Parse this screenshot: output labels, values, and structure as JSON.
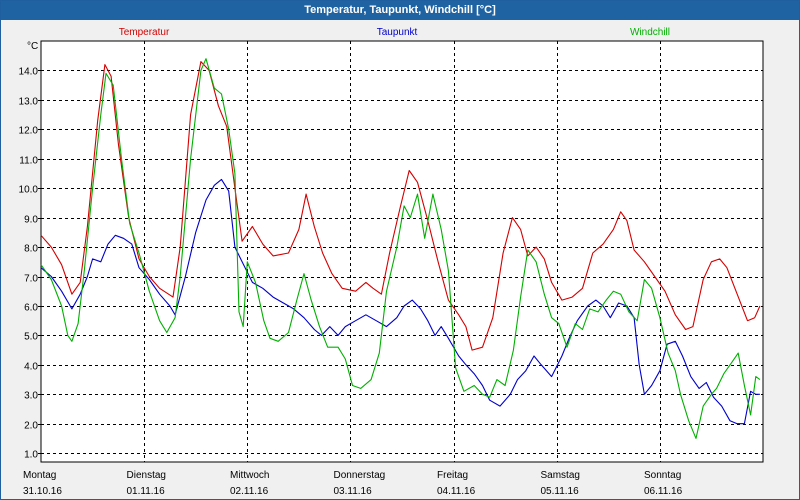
{
  "window": {
    "title": "Temperatur, Taupunkt, Windchill [°C]"
  },
  "chart_data": {
    "type": "line",
    "title": "Temperatur, Taupunkt, Windchill [°C]",
    "ylabel": "°C",
    "ylim": [
      0.7,
      15.0
    ],
    "yticks": [
      1.0,
      2.0,
      3.0,
      4.0,
      5.0,
      6.0,
      7.0,
      8.0,
      9.0,
      10.0,
      11.0,
      12.0,
      13.0,
      14.0
    ],
    "ytick_labels": [
      "1.0",
      "2.0",
      "3.0",
      "4.0",
      "5.0",
      "6.0",
      "7.0",
      "8.0",
      "9.0",
      "10.0",
      "11.0",
      "12.0",
      "13.0",
      "14.0"
    ],
    "x_unit": "days since Monday 31.10.16 00:00",
    "xlim": [
      0,
      7
    ],
    "xticks": [
      {
        "x": 0,
        "day": "Montag",
        "date": "31.10.16"
      },
      {
        "x": 1,
        "day": "Dienstag",
        "date": "01.11.16"
      },
      {
        "x": 2,
        "day": "Mittwoch",
        "date": "02.11.16"
      },
      {
        "x": 3,
        "day": "Donnerstag",
        "date": "03.11.16"
      },
      {
        "x": 4,
        "day": "Freitag",
        "date": "04.11.16"
      },
      {
        "x": 5,
        "day": "Samstag",
        "date": "05.11.16"
      },
      {
        "x": 6,
        "day": "Sonntag",
        "date": "06.11.16"
      }
    ],
    "grid": true,
    "legend_position": "top",
    "series": [
      {
        "name": "Temperatur",
        "color": "#d40000",
        "points": [
          [
            0,
            8.4
          ],
          [
            0.1,
            8.0
          ],
          [
            0.2,
            7.4
          ],
          [
            0.3,
            6.4
          ],
          [
            0.38,
            6.8
          ],
          [
            0.45,
            8.7
          ],
          [
            0.55,
            12.3
          ],
          [
            0.62,
            14.2
          ],
          [
            0.68,
            13.8
          ],
          [
            0.75,
            11.5
          ],
          [
            0.85,
            9.0
          ],
          [
            0.95,
            7.6
          ],
          [
            1.05,
            7.0
          ],
          [
            1.15,
            6.6
          ],
          [
            1.28,
            6.3
          ],
          [
            1.35,
            8.0
          ],
          [
            1.45,
            12.5
          ],
          [
            1.55,
            14.3
          ],
          [
            1.63,
            14.0
          ],
          [
            1.72,
            12.8
          ],
          [
            1.8,
            12.1
          ],
          [
            1.88,
            10.0
          ],
          [
            1.95,
            8.2
          ],
          [
            2.05,
            8.7
          ],
          [
            2.15,
            8.1
          ],
          [
            2.25,
            7.7
          ],
          [
            2.4,
            7.8
          ],
          [
            2.5,
            8.6
          ],
          [
            2.57,
            9.8
          ],
          [
            2.65,
            8.7
          ],
          [
            2.73,
            7.8
          ],
          [
            2.82,
            7.1
          ],
          [
            2.92,
            6.6
          ],
          [
            3.05,
            6.5
          ],
          [
            3.15,
            6.8
          ],
          [
            3.22,
            6.6
          ],
          [
            3.3,
            6.4
          ],
          [
            3.38,
            7.8
          ],
          [
            3.48,
            9.3
          ],
          [
            3.57,
            10.6
          ],
          [
            3.65,
            10.2
          ],
          [
            3.75,
            8.9
          ],
          [
            3.85,
            7.5
          ],
          [
            3.95,
            6.2
          ],
          [
            4.05,
            5.7
          ],
          [
            4.12,
            5.3
          ],
          [
            4.18,
            4.5
          ],
          [
            4.28,
            4.6
          ],
          [
            4.38,
            5.6
          ],
          [
            4.48,
            7.8
          ],
          [
            4.57,
            9.0
          ],
          [
            4.65,
            8.6
          ],
          [
            4.72,
            7.7
          ],
          [
            4.8,
            8.0
          ],
          [
            4.88,
            7.6
          ],
          [
            4.95,
            6.8
          ],
          [
            5.05,
            6.2
          ],
          [
            5.15,
            6.3
          ],
          [
            5.25,
            6.6
          ],
          [
            5.35,
            7.8
          ],
          [
            5.45,
            8.1
          ],
          [
            5.55,
            8.6
          ],
          [
            5.62,
            9.2
          ],
          [
            5.68,
            8.9
          ],
          [
            5.75,
            7.9
          ],
          [
            5.85,
            7.5
          ],
          [
            5.95,
            7.0
          ],
          [
            6.05,
            6.5
          ],
          [
            6.15,
            5.7
          ],
          [
            6.25,
            5.2
          ],
          [
            6.32,
            5.3
          ],
          [
            6.42,
            6.9
          ],
          [
            6.5,
            7.5
          ],
          [
            6.58,
            7.6
          ],
          [
            6.65,
            7.3
          ],
          [
            6.75,
            6.4
          ],
          [
            6.85,
            5.5
          ],
          [
            6.92,
            5.6
          ],
          [
            6.97,
            6.0
          ]
        ]
      },
      {
        "name": "Taupunkt",
        "color": "#0000cc",
        "points": [
          [
            0,
            7.3
          ],
          [
            0.1,
            7.0
          ],
          [
            0.2,
            6.5
          ],
          [
            0.3,
            5.9
          ],
          [
            0.38,
            6.4
          ],
          [
            0.45,
            7.0
          ],
          [
            0.5,
            7.6
          ],
          [
            0.58,
            7.5
          ],
          [
            0.65,
            8.1
          ],
          [
            0.72,
            8.4
          ],
          [
            0.8,
            8.3
          ],
          [
            0.88,
            8.1
          ],
          [
            0.95,
            7.3
          ],
          [
            1.05,
            6.9
          ],
          [
            1.15,
            6.4
          ],
          [
            1.25,
            6.0
          ],
          [
            1.3,
            5.7
          ],
          [
            1.4,
            7.0
          ],
          [
            1.5,
            8.5
          ],
          [
            1.6,
            9.6
          ],
          [
            1.68,
            10.1
          ],
          [
            1.75,
            10.3
          ],
          [
            1.82,
            9.9
          ],
          [
            1.88,
            8.0
          ],
          [
            1.95,
            7.5
          ],
          [
            2.05,
            6.8
          ],
          [
            2.15,
            6.6
          ],
          [
            2.25,
            6.3
          ],
          [
            2.35,
            6.1
          ],
          [
            2.45,
            5.9
          ],
          [
            2.55,
            5.6
          ],
          [
            2.65,
            5.2
          ],
          [
            2.72,
            5.0
          ],
          [
            2.8,
            5.3
          ],
          [
            2.88,
            5.0
          ],
          [
            2.95,
            5.3
          ],
          [
            3.05,
            5.5
          ],
          [
            3.15,
            5.7
          ],
          [
            3.25,
            5.5
          ],
          [
            3.35,
            5.3
          ],
          [
            3.45,
            5.6
          ],
          [
            3.52,
            6.0
          ],
          [
            3.6,
            6.2
          ],
          [
            3.68,
            5.9
          ],
          [
            3.75,
            5.5
          ],
          [
            3.82,
            5.0
          ],
          [
            3.88,
            5.3
          ],
          [
            3.95,
            4.9
          ],
          [
            4.05,
            4.3
          ],
          [
            4.12,
            4.0
          ],
          [
            4.2,
            3.7
          ],
          [
            4.28,
            3.3
          ],
          [
            4.35,
            2.8
          ],
          [
            4.45,
            2.6
          ],
          [
            4.55,
            3.0
          ],
          [
            4.62,
            3.5
          ],
          [
            4.7,
            3.8
          ],
          [
            4.78,
            4.3
          ],
          [
            4.85,
            4.0
          ],
          [
            4.95,
            3.6
          ],
          [
            5.05,
            4.3
          ],
          [
            5.12,
            4.9
          ],
          [
            5.2,
            5.5
          ],
          [
            5.3,
            6.0
          ],
          [
            5.38,
            6.2
          ],
          [
            5.45,
            6.0
          ],
          [
            5.52,
            5.6
          ],
          [
            5.6,
            6.1
          ],
          [
            5.68,
            6.0
          ],
          [
            5.75,
            5.6
          ],
          [
            5.8,
            4.0
          ],
          [
            5.85,
            3.0
          ],
          [
            5.92,
            3.3
          ],
          [
            6.0,
            3.8
          ],
          [
            6.07,
            4.7
          ],
          [
            6.15,
            4.8
          ],
          [
            6.22,
            4.3
          ],
          [
            6.3,
            3.6
          ],
          [
            6.38,
            3.2
          ],
          [
            6.45,
            3.4
          ],
          [
            6.52,
            2.9
          ],
          [
            6.6,
            2.6
          ],
          [
            6.68,
            2.1
          ],
          [
            6.75,
            2.0
          ],
          [
            6.82,
            2.0
          ],
          [
            6.88,
            3.1
          ],
          [
            6.93,
            3.0
          ],
          [
            6.97,
            3.0
          ]
        ]
      },
      {
        "name": "Windchill",
        "color": "#00b000",
        "points": [
          [
            0,
            7.4
          ],
          [
            0.1,
            6.9
          ],
          [
            0.2,
            6.0
          ],
          [
            0.26,
            5.0
          ],
          [
            0.3,
            4.8
          ],
          [
            0.36,
            5.4
          ],
          [
            0.42,
            7.2
          ],
          [
            0.5,
            10.0
          ],
          [
            0.58,
            12.5
          ],
          [
            0.63,
            13.9
          ],
          [
            0.7,
            13.5
          ],
          [
            0.78,
            11.0
          ],
          [
            0.86,
            8.8
          ],
          [
            0.95,
            7.8
          ],
          [
            1.05,
            6.5
          ],
          [
            1.15,
            5.5
          ],
          [
            1.22,
            5.1
          ],
          [
            1.3,
            5.6
          ],
          [
            1.35,
            7.0
          ],
          [
            1.45,
            11.0
          ],
          [
            1.55,
            14.0
          ],
          [
            1.6,
            14.4
          ],
          [
            1.68,
            13.4
          ],
          [
            1.75,
            13.2
          ],
          [
            1.82,
            12.0
          ],
          [
            1.88,
            10.5
          ],
          [
            1.92,
            5.8
          ],
          [
            1.96,
            5.3
          ],
          [
            2.0,
            7.5
          ],
          [
            2.08,
            6.8
          ],
          [
            2.16,
            5.5
          ],
          [
            2.22,
            4.9
          ],
          [
            2.3,
            4.8
          ],
          [
            2.4,
            5.1
          ],
          [
            2.48,
            6.2
          ],
          [
            2.55,
            7.1
          ],
          [
            2.62,
            6.2
          ],
          [
            2.7,
            5.3
          ],
          [
            2.78,
            4.6
          ],
          [
            2.88,
            4.6
          ],
          [
            2.95,
            4.2
          ],
          [
            3.02,
            3.3
          ],
          [
            3.1,
            3.2
          ],
          [
            3.2,
            3.5
          ],
          [
            3.28,
            4.4
          ],
          [
            3.35,
            6.5
          ],
          [
            3.45,
            8.0
          ],
          [
            3.52,
            9.4
          ],
          [
            3.58,
            9.0
          ],
          [
            3.65,
            9.8
          ],
          [
            3.72,
            8.3
          ],
          [
            3.8,
            9.8
          ],
          [
            3.88,
            8.6
          ],
          [
            3.95,
            7.2
          ],
          [
            4.02,
            3.9
          ],
          [
            4.1,
            3.1
          ],
          [
            4.2,
            3.3
          ],
          [
            4.28,
            3.0
          ],
          [
            4.35,
            2.9
          ],
          [
            4.42,
            3.5
          ],
          [
            4.5,
            3.3
          ],
          [
            4.58,
            4.5
          ],
          [
            4.65,
            6.3
          ],
          [
            4.72,
            7.9
          ],
          [
            4.8,
            7.5
          ],
          [
            4.88,
            6.4
          ],
          [
            4.95,
            5.6
          ],
          [
            5.02,
            5.4
          ],
          [
            5.1,
            4.6
          ],
          [
            5.18,
            5.4
          ],
          [
            5.25,
            5.2
          ],
          [
            5.32,
            5.9
          ],
          [
            5.4,
            5.8
          ],
          [
            5.48,
            6.2
          ],
          [
            5.55,
            6.5
          ],
          [
            5.62,
            6.4
          ],
          [
            5.7,
            5.8
          ],
          [
            5.78,
            5.5
          ],
          [
            5.85,
            6.9
          ],
          [
            5.92,
            6.6
          ],
          [
            6.0,
            5.6
          ],
          [
            6.08,
            4.4
          ],
          [
            6.15,
            3.8
          ],
          [
            6.2,
            3.0
          ],
          [
            6.28,
            2.1
          ],
          [
            6.35,
            1.5
          ],
          [
            6.42,
            2.6
          ],
          [
            6.5,
            3.0
          ],
          [
            6.55,
            3.2
          ],
          [
            6.62,
            3.7
          ],
          [
            6.7,
            4.1
          ],
          [
            6.76,
            4.4
          ],
          [
            6.82,
            3.3
          ],
          [
            6.88,
            2.3
          ],
          [
            6.93,
            3.6
          ],
          [
            6.97,
            3.5
          ]
        ]
      }
    ]
  }
}
